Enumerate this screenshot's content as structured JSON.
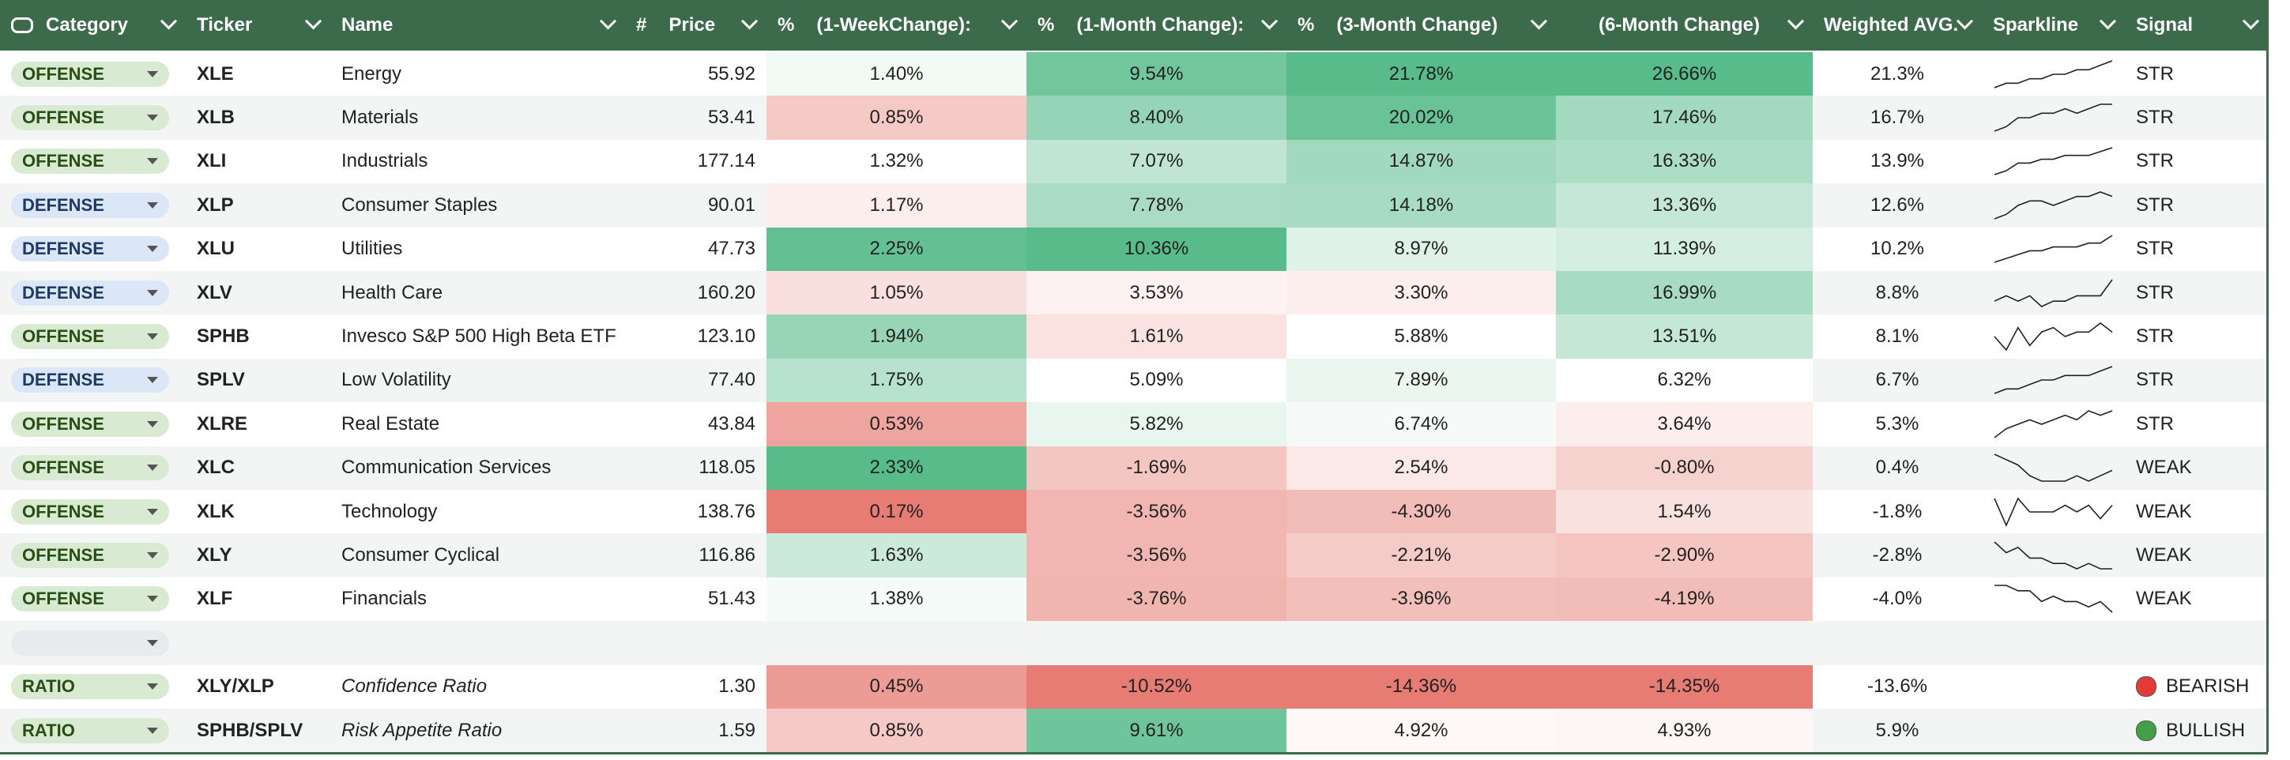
{
  "header": {
    "columns": [
      {
        "label": "Category"
      },
      {
        "label": "Ticker"
      },
      {
        "label": "Name"
      },
      {
        "prefix": "#",
        "label": "Price"
      },
      {
        "prefix": "%",
        "label": "(1-WeekChange):"
      },
      {
        "prefix": "%",
        "label": "(1-Month Change):"
      },
      {
        "prefix": "%",
        "label": "(3-Month Change)"
      },
      {
        "label": "(6-Month Change)"
      },
      {
        "label": "Weighted AVG."
      },
      {
        "label": "Sparkline"
      },
      {
        "label": "Signal"
      }
    ]
  },
  "color_scale": {
    "min": "#e67c73",
    "mid": "#ffffff",
    "max": "#57bb8a"
  },
  "category_styles": {
    "OFFENSE": {
      "bg": "#d9ead3",
      "fg": "#274e13"
    },
    "DEFENSE": {
      "bg": "#dbe7f7",
      "fg": "#1c3a63"
    },
    "RATIO": {
      "bg": "#d9ead3",
      "fg": "#274e13"
    }
  },
  "rows": [
    {
      "category": "OFFENSE",
      "ticker": "XLE",
      "name": "Energy",
      "price": "55.92",
      "week1": "1.40%",
      "month1": "9.54%",
      "month3": "21.78%",
      "month6": "26.66%",
      "weighted": "21.3%",
      "sparkline": [
        2,
        3,
        3,
        4,
        4,
        5,
        5,
        6,
        6,
        7,
        8
      ],
      "signal": "STR"
    },
    {
      "category": "OFFENSE",
      "ticker": "XLB",
      "name": "Materials",
      "price": "53.41",
      "week1": "0.85%",
      "month1": "8.40%",
      "month3": "20.02%",
      "month6": "17.46%",
      "weighted": "16.7%",
      "sparkline": [
        1,
        2,
        4,
        4,
        5,
        5,
        6,
        5,
        6,
        7,
        7
      ],
      "signal": "STR"
    },
    {
      "category": "OFFENSE",
      "ticker": "XLI",
      "name": "Industrials",
      "price": "177.14",
      "week1": "1.32%",
      "month1": "7.07%",
      "month3": "14.87%",
      "month6": "16.33%",
      "weighted": "13.9%",
      "sparkline": [
        1,
        2,
        4,
        4,
        5,
        5,
        6,
        6,
        6,
        7,
        8
      ],
      "signal": "STR"
    },
    {
      "category": "DEFENSE",
      "ticker": "XLP",
      "name": "Consumer Staples",
      "price": "90.01",
      "week1": "1.17%",
      "month1": "7.78%",
      "month3": "14.18%",
      "month6": "13.36%",
      "weighted": "12.6%",
      "sparkline": [
        1,
        2,
        4,
        5,
        5,
        4,
        5,
        6,
        6,
        7,
        6
      ],
      "signal": "STR"
    },
    {
      "category": "DEFENSE",
      "ticker": "XLU",
      "name": "Utilities",
      "price": "47.73",
      "week1": "2.25%",
      "month1": "10.36%",
      "month3": "8.97%",
      "month6": "11.39%",
      "weighted": "10.2%",
      "sparkline": [
        1,
        2,
        3,
        4,
        4,
        5,
        5,
        5,
        6,
        6,
        8
      ],
      "signal": "STR"
    },
    {
      "category": "DEFENSE",
      "ticker": "XLV",
      "name": "Health Care",
      "price": "160.20",
      "week1": "1.05%",
      "month1": "3.53%",
      "month3": "3.30%",
      "month6": "16.99%",
      "weighted": "8.8%",
      "sparkline": [
        3,
        4,
        3,
        4,
        2,
        3,
        3,
        4,
        4,
        4,
        7
      ],
      "signal": "STR"
    },
    {
      "category": "OFFENSE",
      "ticker": "SPHB",
      "name": "Invesco S&P 500 High Beta ETF",
      "price": "123.10",
      "week1": "1.94%",
      "month1": "1.61%",
      "month3": "5.88%",
      "month6": "13.51%",
      "weighted": "8.1%",
      "sparkline": [
        5,
        2,
        7,
        3,
        6,
        7,
        5,
        6,
        6,
        8,
        6
      ],
      "signal": "STR"
    },
    {
      "category": "DEFENSE",
      "ticker": "SPLV",
      "name": "Low Volatility",
      "price": "77.40",
      "week1": "1.75%",
      "month1": "5.09%",
      "month3": "7.89%",
      "month6": "6.32%",
      "weighted": "6.7%",
      "sparkline": [
        1,
        2,
        2,
        3,
        4,
        4,
        5,
        5,
        5,
        6,
        7
      ],
      "signal": "STR"
    },
    {
      "category": "OFFENSE",
      "ticker": "XLRE",
      "name": "Real Estate",
      "price": "43.84",
      "week1": "0.53%",
      "month1": "5.82%",
      "month3": "6.74%",
      "month6": "3.64%",
      "weighted": "5.3%",
      "sparkline": [
        1,
        3,
        4,
        5,
        4,
        5,
        6,
        5,
        7,
        6,
        7
      ],
      "signal": "STR"
    },
    {
      "category": "OFFENSE",
      "ticker": "XLC",
      "name": "Communication Services",
      "price": "118.05",
      "week1": "2.33%",
      "month1": "-1.69%",
      "month3": "2.54%",
      "month6": "-0.80%",
      "weighted": "0.4%",
      "sparkline": [
        7,
        6,
        5,
        3,
        2,
        2,
        2,
        3,
        2,
        3,
        4
      ],
      "signal": "WEAK"
    },
    {
      "category": "OFFENSE",
      "ticker": "XLK",
      "name": "Technology",
      "price": "138.76",
      "week1": "0.17%",
      "month1": "-3.56%",
      "month3": "-4.30%",
      "month6": "1.54%",
      "weighted": "-1.8%",
      "sparkline": [
        6,
        2,
        6,
        4,
        4,
        4,
        5,
        4,
        5,
        3,
        5
      ],
      "signal": "WEAK"
    },
    {
      "category": "OFFENSE",
      "ticker": "XLY",
      "name": "Consumer Cyclical",
      "price": "116.86",
      "week1": "1.63%",
      "month1": "-3.56%",
      "month3": "-2.21%",
      "month6": "-2.90%",
      "weighted": "-2.8%",
      "sparkline": [
        7,
        5,
        6,
        4,
        4,
        3,
        3,
        2,
        3,
        2,
        2
      ],
      "signal": "WEAK"
    },
    {
      "category": "OFFENSE",
      "ticker": "XLF",
      "name": "Financials",
      "price": "51.43",
      "week1": "1.38%",
      "month1": "-3.76%",
      "month3": "-3.96%",
      "month6": "-4.19%",
      "weighted": "-4.0%",
      "sparkline": [
        6,
        6,
        5,
        5,
        3,
        4,
        3,
        3,
        2,
        3,
        1
      ],
      "signal": "WEAK"
    }
  ],
  "ratio_rows": [
    {
      "category": "RATIO",
      "ticker": "XLY/XLP",
      "name": "Confidence Ratio",
      "price": "1.30",
      "week1": "0.45%",
      "month1": "-10.52%",
      "month3": "-14.36%",
      "month6": "-14.35%",
      "weighted": "-13.6%",
      "signal_dot": "#e53935",
      "signal": "BEARISH"
    },
    {
      "category": "RATIO",
      "ticker": "SPHB/SPLV",
      "name": "Risk Appetite Ratio",
      "price": "1.59",
      "week1": "0.85%",
      "month1": "9.61%",
      "month3": "4.92%",
      "month6": "4.93%",
      "weighted": "5.9%",
      "signal_dot": "#43a047",
      "signal": "BULLISH"
    }
  ]
}
